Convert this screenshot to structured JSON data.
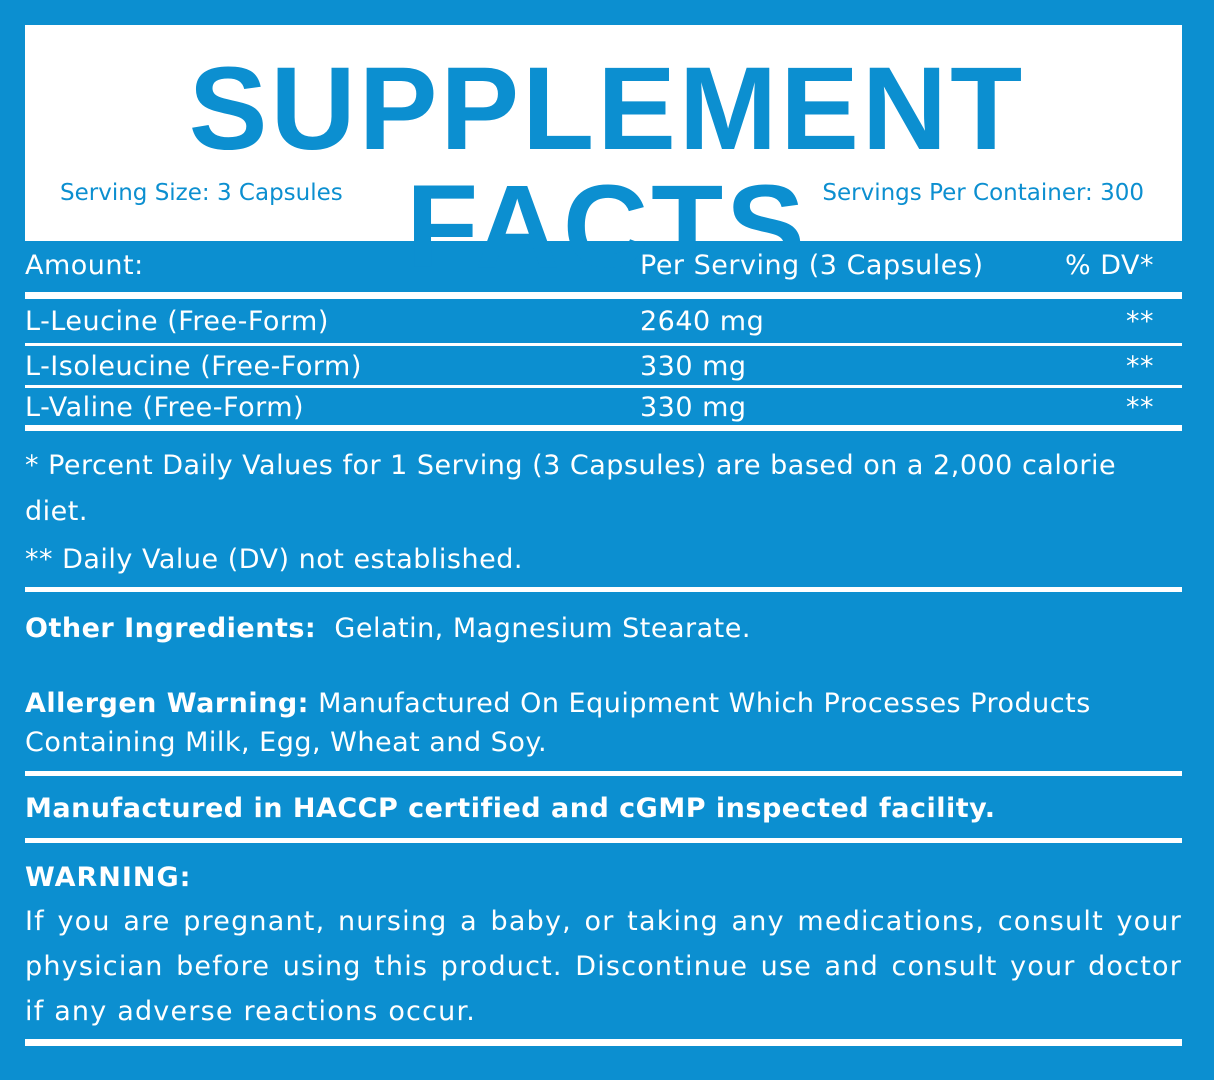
{
  "header": {
    "title": "SUPPLEMENT FACTS",
    "serving_size": "Serving Size: 3 Capsules",
    "servings_per_container": "Servings Per Container: 300"
  },
  "table": {
    "header": [
      "Amount:",
      "Per Serving (3 Capsules)",
      "% DV*"
    ],
    "rows": [
      [
        "L-Leucine (Free-Form)",
        "2640 mg",
        "**"
      ],
      [
        "L-Isoleucine (Free-Form)",
        "330 mg",
        "**"
      ],
      [
        "L-Valine (Free-Form)",
        "330 mg",
        "**"
      ]
    ]
  },
  "footnotes": [
    "* Percent Daily Values for 1 Serving (3 Capsules) are based on a 2,000 calorie diet.",
    "** Daily Value (DV) not established."
  ],
  "other_ingredients": {
    "label": "Other Ingredients:",
    "text": "Gelatin, Magnesium Stearate."
  },
  "allergen_warning": {
    "label": "Allergen Warning:",
    "text": "Manufactured On Equipment Which Processes Products Containing Milk, Egg, Wheat and Soy."
  },
  "manufacturing": "Manufactured in HACCP certified and cGMP inspected facility.",
  "warning": {
    "title": "WARNING:",
    "text": "If you are pregnant, nursing a baby, or taking any medications, consult your physician before using this product. Discontinue use and consult your doctor if any adverse reactions occur."
  }
}
